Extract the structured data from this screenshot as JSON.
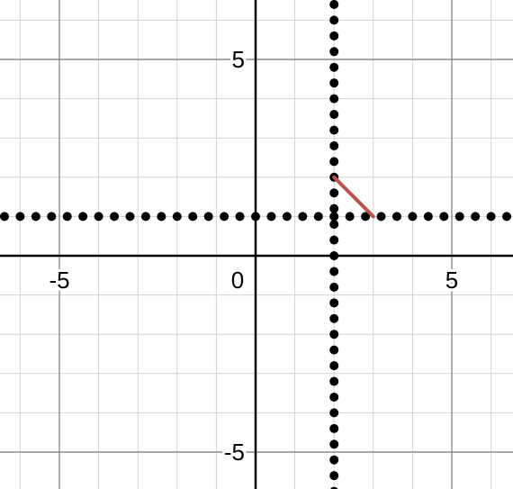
{
  "chart_data": {
    "type": "line",
    "title": "",
    "xlabel": "",
    "ylabel": "",
    "xlim": [
      -6.5,
      6.6
    ],
    "ylim": [
      -6.0,
      6.5
    ],
    "grid": true,
    "minor_grid_step": 1,
    "major_grid_step": 5,
    "x_tick_labels": [
      {
        "value": -5,
        "text": "-5"
      },
      {
        "value": 0,
        "text": "0"
      },
      {
        "value": 5,
        "text": "5"
      }
    ],
    "y_tick_labels": [
      {
        "value": 5,
        "text": "5"
      },
      {
        "value": -5,
        "text": "-5"
      }
    ],
    "series": [
      {
        "style": "dotted",
        "kind": "horizontal",
        "y": 1,
        "color": "#000000"
      },
      {
        "style": "dotted",
        "kind": "vertical",
        "x": 2,
        "color": "#000000"
      },
      {
        "style": "solid",
        "kind": "segment",
        "points": [
          [
            2,
            2
          ],
          [
            3,
            1
          ]
        ],
        "color": "#c0504d"
      }
    ]
  },
  "colors": {
    "background": "#ffffff",
    "minor_grid": "#d4d4d4",
    "major_grid": "#8c8c8c",
    "axis": "#000000"
  }
}
